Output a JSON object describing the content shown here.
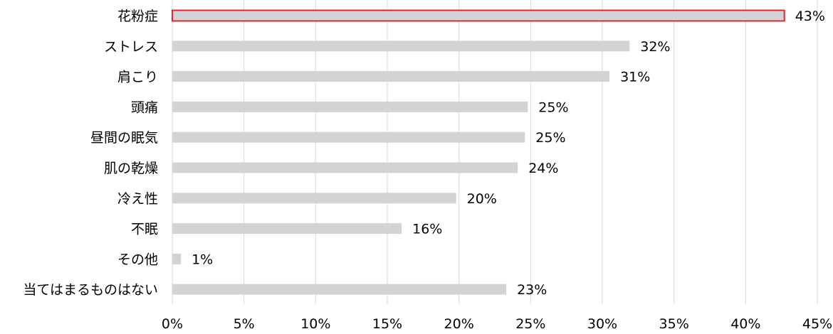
{
  "chart_data": {
    "type": "bar",
    "orientation": "horizontal",
    "categories": [
      "花粉症",
      "ストレス",
      "肩こり",
      "頭痛",
      "昼間の眠気",
      "肌の乾燥",
      "冷え性",
      "不眠",
      "その他",
      "当てはまるものはない"
    ],
    "values": [
      42.7,
      31.9,
      30.5,
      24.8,
      24.6,
      24.1,
      19.8,
      16.0,
      0.6,
      23.3
    ],
    "data_labels": [
      "43%",
      "32%",
      "31%",
      "25%",
      "25%",
      "24%",
      "20%",
      "16%",
      "1%",
      "23%"
    ],
    "highlight_index": 0,
    "xlim": [
      0,
      45
    ],
    "xticks": [
      0,
      5,
      10,
      15,
      20,
      25,
      30,
      35,
      40,
      45
    ],
    "xtick_labels": [
      "0%",
      "5%",
      "10%",
      "15%",
      "20%",
      "25%",
      "30%",
      "35%",
      "40%",
      "45%"
    ],
    "grid": "vertical",
    "title": "",
    "xlabel": "",
    "ylabel": ""
  },
  "colors": {
    "bar": "#d3d3d3",
    "highlight_border": "#e0262e",
    "grid": "#d9d9d9",
    "text": "#000000"
  }
}
